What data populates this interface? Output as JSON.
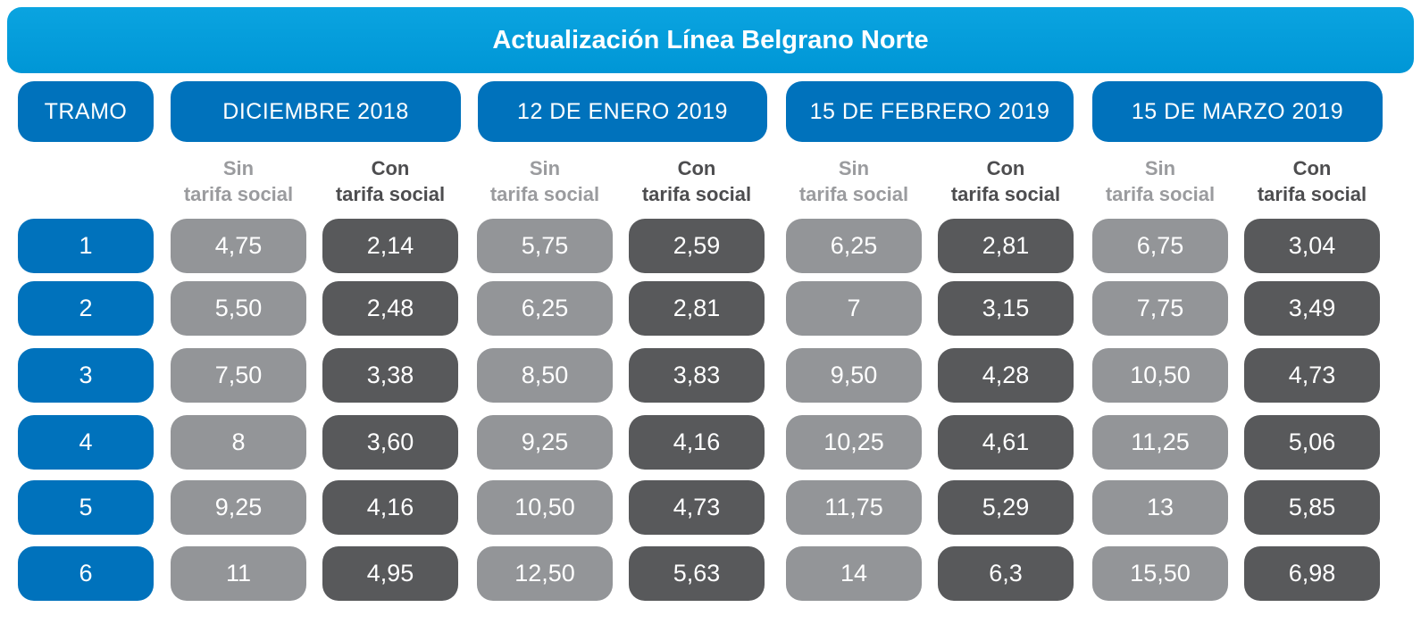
{
  "title": "Actualización Línea Belgrano Norte",
  "tramo_header": "TRAMO",
  "sub_labels": {
    "sin_line1": "Sin",
    "sin_line2": "tarifa social",
    "con_line1": "Con",
    "con_line2": "tarifa social"
  },
  "colors": {
    "title_bg": "#0096d6",
    "header_bg": "#0072bc",
    "sin_bg": "#939598",
    "con_bg": "#58595b"
  },
  "chart_data": {
    "type": "table",
    "title": "Actualización Línea Belgrano Norte",
    "row_header": "TRAMO",
    "tramos": [
      "1",
      "2",
      "3",
      "4",
      "5",
      "6"
    ],
    "periods": [
      {
        "label": "DICIEMBRE 2018",
        "sin": [
          "4,75",
          "5,50",
          "7,50",
          "8",
          "9,25",
          "11"
        ],
        "con": [
          "2,14",
          "2,48",
          "3,38",
          "3,60",
          "4,16",
          "4,95"
        ]
      },
      {
        "label": "12 DE ENERO 2019",
        "sin": [
          "5,75",
          "6,25",
          "8,50",
          "9,25",
          "10,50",
          "12,50"
        ],
        "con": [
          "2,59",
          "2,81",
          "3,83",
          "4,16",
          "4,73",
          "5,63"
        ]
      },
      {
        "label": "15 DE FEBRERO 2019",
        "sin": [
          "6,25",
          "7",
          "9,50",
          "10,25",
          "11,75",
          "14"
        ],
        "con": [
          "2,81",
          "3,15",
          "4,28",
          "4,61",
          "5,29",
          "6,3"
        ]
      },
      {
        "label": "15 DE MARZO 2019",
        "sin": [
          "6,75",
          "7,75",
          "10,50",
          "11,25",
          "13",
          "15,50"
        ],
        "con": [
          "3,04",
          "3,49",
          "4,73",
          "5,06",
          "5,85",
          "6,98"
        ]
      }
    ]
  }
}
